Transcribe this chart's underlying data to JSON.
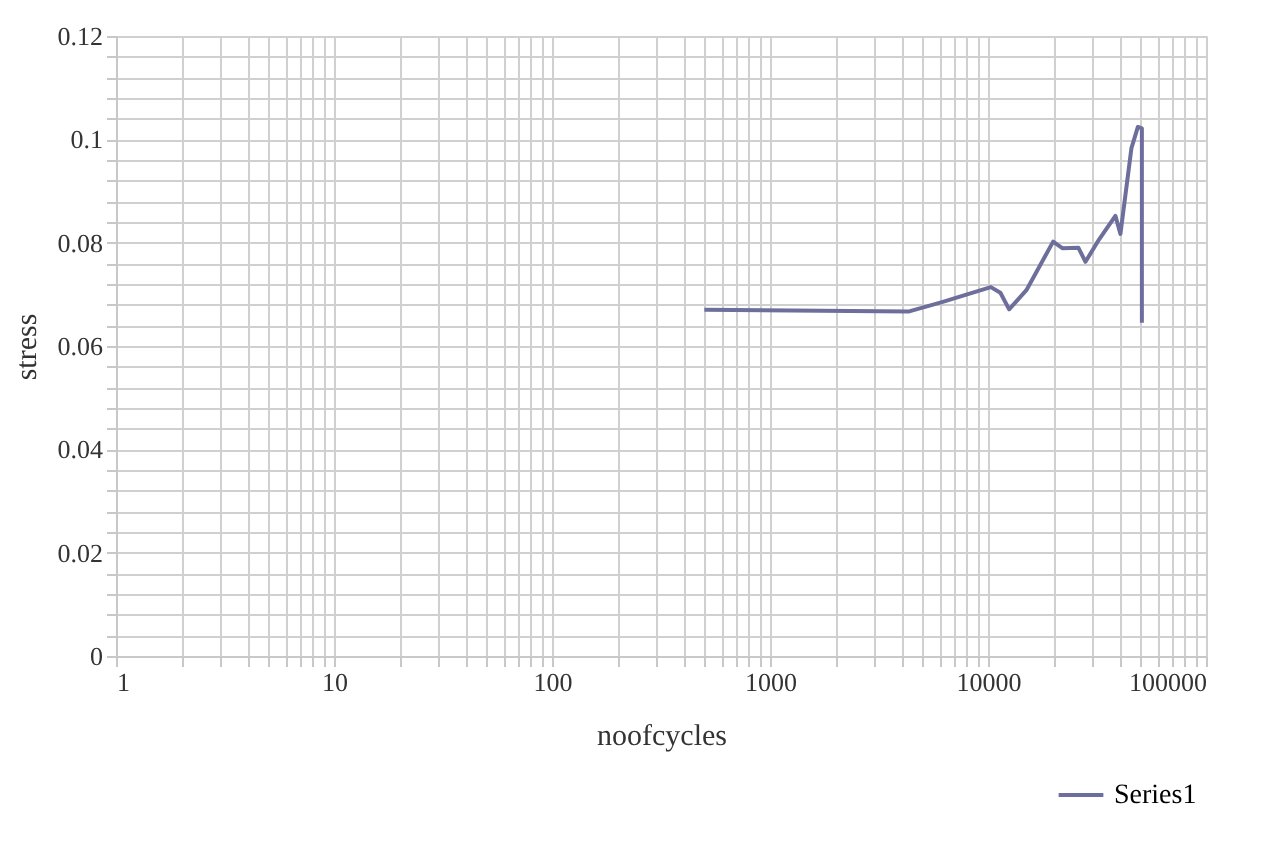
{
  "chart_data": {
    "type": "line",
    "xlabel": "noofcycles",
    "ylabel": "stress",
    "log": "x",
    "grid": true,
    "legend": "bottom right",
    "marker": "none",
    "line_style": "solid",
    "x": [
      500,
      4350,
      6150,
      10300,
      11400,
      12500,
      15000,
      19900,
      22000,
      26000,
      28000,
      32300,
      38400,
      40500,
      45500,
      48700,
      50800,
      50800
    ],
    "series": [
      {
        "name": "Series1",
        "color": "#6e6e9c",
        "values": [
          0.067,
          0.0667,
          0.0685,
          0.0714,
          0.0703,
          0.0671,
          0.0708,
          0.0802,
          0.0789,
          0.079,
          0.0763,
          0.0806,
          0.0852,
          0.0817,
          0.0983,
          0.1024,
          0.1021,
          0.0645
        ]
      }
    ],
    "xlim": [
      1,
      100000
    ],
    "xticks": [
      1,
      {
        "value": 2,
        "label": null
      },
      {
        "value": 3,
        "label": null
      },
      {
        "value": 4,
        "label": null
      },
      {
        "value": 5,
        "label": null
      },
      {
        "value": 6,
        "label": null
      },
      {
        "value": 7,
        "label": null
      },
      {
        "value": 8,
        "label": null
      },
      {
        "value": 9,
        "label": null
      },
      10,
      {
        "value": 20,
        "label": null
      },
      {
        "value": 30,
        "label": null
      },
      {
        "value": 40,
        "label": null
      },
      {
        "value": 50,
        "label": null
      },
      {
        "value": 60,
        "label": null
      },
      {
        "value": 70,
        "label": null
      },
      {
        "value": 80,
        "label": null
      },
      {
        "value": 90,
        "label": null
      },
      100,
      {
        "value": 200,
        "label": null
      },
      {
        "value": 300,
        "label": null
      },
      {
        "value": 400,
        "label": null
      },
      {
        "value": 500,
        "label": null
      },
      {
        "value": 600,
        "label": null
      },
      {
        "value": 700,
        "label": null
      },
      {
        "value": 800,
        "label": null
      },
      {
        "value": 900,
        "label": null
      },
      1000,
      {
        "value": 2000,
        "label": null
      },
      {
        "value": 3000,
        "label": null
      },
      {
        "value": 4000,
        "label": null
      },
      {
        "value": 5000,
        "label": null
      },
      {
        "value": 6000,
        "label": null
      },
      {
        "value": 7000,
        "label": null
      },
      {
        "value": 8000,
        "label": null
      },
      {
        "value": 9000,
        "label": null
      },
      10000,
      {
        "value": 20000,
        "label": null
      },
      {
        "value": 30000,
        "label": null
      },
      {
        "value": 40000,
        "label": null
      },
      {
        "value": 50000,
        "label": null
      },
      {
        "value": 60000,
        "label": null
      },
      {
        "value": 70000,
        "label": null
      },
      {
        "value": 80000,
        "label": null
      },
      {
        "value": 90000,
        "label": null
      },
      100000
    ],
    "ylim": [
      0,
      0.12
    ],
    "yticks": [
      0,
      {
        "value": 0.004,
        "label": null
      },
      {
        "value": 0.008,
        "label": null
      },
      {
        "value": 0.012,
        "label": null
      },
      {
        "value": 0.016,
        "label": null
      },
      0.02,
      {
        "value": 0.024,
        "label": null
      },
      {
        "value": 0.028,
        "label": null
      },
      {
        "value": 0.032,
        "label": null
      },
      {
        "value": 0.036,
        "label": null
      },
      0.04,
      {
        "value": 0.044,
        "label": null
      },
      {
        "value": 0.048,
        "label": null
      },
      {
        "value": 0.052,
        "label": null
      },
      {
        "value": 0.056,
        "label": null
      },
      0.06,
      {
        "value": 0.064,
        "label": null
      },
      {
        "value": 0.068,
        "label": null
      },
      {
        "value": 0.072,
        "label": null
      },
      {
        "value": 0.076,
        "label": null
      },
      0.08,
      {
        "value": 0.084,
        "label": null
      },
      {
        "value": 0.088,
        "label": null
      },
      {
        "value": 0.092,
        "label": null
      },
      {
        "value": 0.096,
        "label": null
      },
      0.1,
      {
        "value": 0.104,
        "label": null
      },
      {
        "value": 0.108,
        "label": null
      },
      {
        "value": 0.112,
        "label": null
      },
      {
        "value": 0.116,
        "label": null
      },
      0.12
    ]
  }
}
